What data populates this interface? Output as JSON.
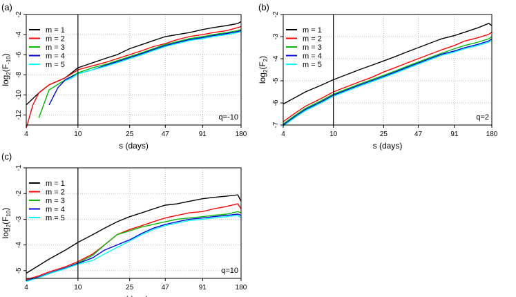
{
  "chart_data": [
    {
      "panel_label": "(a)",
      "type": "line",
      "xlabel": "s (days)",
      "ylabel_main": "log",
      "ylabel_sub": "2",
      "ylabel_rest_open": "(F",
      "ylabel_rest_sub": "-10",
      "ylabel_rest_close": ")",
      "annotation": "q=-10",
      "xscale": "log",
      "xticks": [
        "4",
        "10",
        "25",
        "47",
        "91",
        "180"
      ],
      "yticks": [
        "-12",
        "-10",
        "-8",
        "-6",
        "-4",
        "-2"
      ],
      "xlim": [
        4,
        180
      ],
      "ylim": [
        -13,
        -2
      ],
      "legend_position": "top-left",
      "vline_x": 10,
      "grid": true,
      "series": [
        {
          "name": "m = 1",
          "color": "#000000",
          "x": [
            4,
            5,
            6,
            8,
            10,
            13,
            16,
            20,
            25,
            31,
            38,
            47,
            58,
            72,
            91,
            110,
            140,
            170,
            180
          ],
          "y": [
            -11,
            -9.8,
            -9,
            -8.3,
            -7.3,
            -6.8,
            -6.4,
            -6,
            -5.4,
            -5,
            -4.6,
            -4.2,
            -4,
            -3.8,
            -3.5,
            -3.3,
            -3.1,
            -2.9,
            -2.7
          ]
        },
        {
          "name": "m = 2",
          "color": "#ff0000",
          "x": [
            4,
            4.5,
            5,
            6,
            8,
            10,
            13,
            16,
            20,
            25,
            31,
            38,
            47,
            58,
            72,
            91,
            110,
            140,
            170,
            180
          ],
          "y": [
            -13.3,
            -11,
            -9.8,
            -9,
            -8.3,
            -7.5,
            -7.1,
            -6.8,
            -6.4,
            -6,
            -5.6,
            -5.2,
            -4.9,
            -4.5,
            -4.2,
            -4,
            -3.8,
            -3.6,
            -3.3,
            -3.2
          ]
        },
        {
          "name": "m = 3",
          "color": "#00bb00",
          "x": [
            5,
            6,
            8,
            10,
            13,
            16,
            20,
            25,
            31,
            38,
            47,
            58,
            72,
            91,
            110,
            140,
            170,
            180
          ],
          "y": [
            -12.3,
            -9.5,
            -8.5,
            -7.8,
            -7.3,
            -7,
            -6.6,
            -6.2,
            -5.8,
            -5.4,
            -5,
            -4.7,
            -4.4,
            -4.2,
            -4,
            -3.8,
            -3.6,
            -3.5
          ]
        },
        {
          "name": "m = 4",
          "color": "#0000dd",
          "x": [
            6,
            7,
            8,
            10,
            13,
            16,
            20,
            25,
            31,
            38,
            47,
            58,
            72,
            91,
            110,
            140,
            170,
            180
          ],
          "y": [
            -11,
            -9.3,
            -8.5,
            -7.9,
            -7.5,
            -7.1,
            -6.7,
            -6.3,
            -5.9,
            -5.5,
            -5.1,
            -4.8,
            -4.5,
            -4.3,
            -4.1,
            -3.9,
            -3.7,
            -3.6
          ]
        },
        {
          "name": "m = 5",
          "color": "#00ffff",
          "x": [
            8,
            9,
            10,
            13,
            16,
            20,
            25,
            31,
            38,
            47,
            58,
            72,
            91,
            110,
            140,
            170,
            180
          ],
          "y": [
            -8.6,
            -8.3,
            -7.9,
            -7.5,
            -7.2,
            -6.8,
            -6.4,
            -6,
            -5.6,
            -5.2,
            -4.9,
            -4.6,
            -4.4,
            -4.2,
            -4,
            -3.8,
            -3.7
          ]
        }
      ]
    },
    {
      "panel_label": "(b)",
      "type": "line",
      "xlabel": "s (days)",
      "ylabel_main": "log",
      "ylabel_sub": "2",
      "ylabel_rest_open": "(F",
      "ylabel_rest_sub": "2",
      "ylabel_rest_close": ")",
      "annotation": "q=2",
      "xscale": "log",
      "xticks": [
        "4",
        "10",
        "25",
        "47",
        "91",
        "180"
      ],
      "yticks": [
        "-7",
        "-6",
        "-5",
        "-4",
        "-3",
        "-2"
      ],
      "xlim": [
        4,
        180
      ],
      "ylim": [
        -7,
        -2
      ],
      "legend_position": "top-left",
      "vline_x": 10,
      "grid": true,
      "series": [
        {
          "name": "m = 1",
          "color": "#000000",
          "x": [
            4,
            5,
            6,
            8,
            10,
            13,
            16,
            20,
            25,
            31,
            38,
            47,
            58,
            72,
            91,
            110,
            140,
            170,
            180
          ],
          "y": [
            -6.05,
            -5.75,
            -5.5,
            -5.2,
            -4.95,
            -4.7,
            -4.5,
            -4.3,
            -4.1,
            -3.9,
            -3.7,
            -3.5,
            -3.3,
            -3.1,
            -2.95,
            -2.8,
            -2.6,
            -2.4,
            -2.5
          ]
        },
        {
          "name": "m = 2",
          "color": "#ff0000",
          "x": [
            4,
            5,
            6,
            8,
            10,
            13,
            16,
            20,
            25,
            31,
            38,
            47,
            58,
            72,
            91,
            110,
            140,
            170,
            180
          ],
          "y": [
            -6.85,
            -6.45,
            -6.15,
            -5.8,
            -5.5,
            -5.25,
            -5.05,
            -4.85,
            -4.6,
            -4.4,
            -4.2,
            -4,
            -3.8,
            -3.6,
            -3.4,
            -3.2,
            -3.05,
            -2.9,
            -2.8
          ]
        },
        {
          "name": "m = 3",
          "color": "#00bb00",
          "x": [
            4,
            5,
            6,
            8,
            10,
            13,
            16,
            20,
            25,
            31,
            38,
            47,
            58,
            72,
            91,
            110,
            140,
            170,
            180
          ],
          "y": [
            -6.95,
            -6.55,
            -6.25,
            -5.9,
            -5.6,
            -5.35,
            -5.15,
            -4.95,
            -4.75,
            -4.55,
            -4.35,
            -4.15,
            -3.95,
            -3.75,
            -3.55,
            -3.4,
            -3.25,
            -3.1,
            -3.0
          ]
        },
        {
          "name": "m = 4",
          "color": "#0000dd",
          "x": [
            4,
            5,
            6,
            8,
            10,
            13,
            16,
            20,
            25,
            31,
            38,
            47,
            58,
            72,
            91,
            110,
            140,
            170,
            180
          ],
          "y": [
            -7.0,
            -6.6,
            -6.3,
            -5.95,
            -5.65,
            -5.4,
            -5.2,
            -5.0,
            -4.8,
            -4.6,
            -4.4,
            -4.2,
            -4,
            -3.8,
            -3.65,
            -3.5,
            -3.35,
            -3.2,
            -3.1
          ]
        },
        {
          "name": "m = 5",
          "color": "#00ffff",
          "x": [
            4,
            5,
            6,
            8,
            10,
            13,
            16,
            20,
            25,
            31,
            38,
            47,
            58,
            72,
            91,
            110,
            140,
            170,
            180
          ],
          "y": [
            -7.05,
            -6.65,
            -6.35,
            -6.0,
            -5.7,
            -5.45,
            -5.25,
            -5.05,
            -4.85,
            -4.65,
            -4.45,
            -4.25,
            -4.05,
            -3.85,
            -3.7,
            -3.55,
            -3.4,
            -3.25,
            -3.15
          ]
        }
      ]
    },
    {
      "panel_label": "(c)",
      "type": "line",
      "xlabel": "s (days)",
      "ylabel_main": "log",
      "ylabel_sub": "2",
      "ylabel_rest_open": "(F",
      "ylabel_rest_sub": "10",
      "ylabel_rest_close": ")",
      "annotation": "q=10",
      "xscale": "log",
      "xticks": [
        "4",
        "10",
        "25",
        "47",
        "91",
        "180"
      ],
      "yticks": [
        "-5",
        "-4",
        "-3",
        "-2",
        "-1"
      ],
      "xlim": [
        4,
        180
      ],
      "ylim": [
        -5.3,
        -1
      ],
      "legend_position": "top-left",
      "vline_x": 10,
      "grid": true,
      "series": [
        {
          "name": "m = 1",
          "color": "#000000",
          "x": [
            4,
            5,
            6,
            8,
            10,
            13,
            16,
            20,
            25,
            31,
            38,
            47,
            58,
            72,
            91,
            110,
            140,
            170,
            180
          ],
          "y": [
            -5.1,
            -4.8,
            -4.55,
            -4.2,
            -3.9,
            -3.6,
            -3.35,
            -3.1,
            -2.9,
            -2.75,
            -2.6,
            -2.45,
            -2.4,
            -2.3,
            -2.2,
            -2.15,
            -2.1,
            -2.05,
            -2.3
          ]
        },
        {
          "name": "m = 2",
          "color": "#ff0000",
          "x": [
            4,
            5,
            6,
            8,
            10,
            13,
            16,
            20,
            25,
            31,
            38,
            47,
            58,
            72,
            91,
            110,
            140,
            170,
            180
          ],
          "y": [
            -5.35,
            -5.2,
            -5.05,
            -4.85,
            -4.65,
            -4.35,
            -4.0,
            -3.6,
            -3.4,
            -3.25,
            -3.1,
            -2.95,
            -2.85,
            -2.75,
            -2.7,
            -2.6,
            -2.5,
            -2.4,
            -2.6
          ]
        },
        {
          "name": "m = 3",
          "color": "#00bb00",
          "x": [
            4,
            5,
            6,
            8,
            10,
            13,
            16,
            20,
            25,
            31,
            38,
            47,
            58,
            72,
            91,
            110,
            140,
            170,
            180
          ],
          "y": [
            -5.4,
            -5.25,
            -5.1,
            -4.9,
            -4.7,
            -4.4,
            -4.0,
            -3.6,
            -3.45,
            -3.3,
            -3.2,
            -3.1,
            -3.0,
            -2.95,
            -2.9,
            -2.85,
            -2.8,
            -2.7,
            -2.75
          ]
        },
        {
          "name": "m = 4",
          "color": "#0000dd",
          "x": [
            4,
            5,
            6,
            8,
            10,
            13,
            16,
            20,
            25,
            31,
            38,
            47,
            58,
            72,
            91,
            110,
            140,
            170,
            180
          ],
          "y": [
            -5.4,
            -5.25,
            -5.1,
            -4.9,
            -4.72,
            -4.5,
            -4.2,
            -4.0,
            -3.8,
            -3.55,
            -3.35,
            -3.2,
            -3.1,
            -3.0,
            -2.95,
            -2.9,
            -2.85,
            -2.8,
            -2.85
          ]
        },
        {
          "name": "m = 5",
          "color": "#00ffff",
          "x": [
            4,
            5,
            6,
            8,
            10,
            13,
            16,
            20,
            25,
            31,
            38,
            47,
            58,
            72,
            91,
            110,
            140,
            170,
            180
          ],
          "y": [
            -5.42,
            -5.27,
            -5.12,
            -4.92,
            -4.75,
            -4.6,
            -4.35,
            -4.1,
            -3.85,
            -3.6,
            -3.4,
            -3.25,
            -3.15,
            -3.05,
            -3.0,
            -2.95,
            -2.9,
            -2.85,
            -2.95
          ]
        }
      ]
    }
  ]
}
